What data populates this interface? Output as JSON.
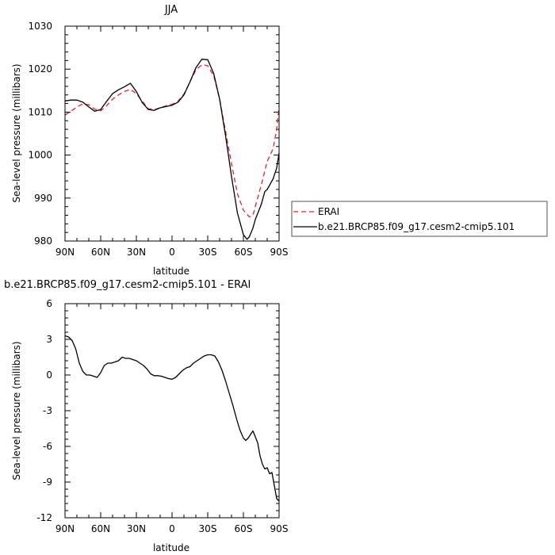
{
  "chart_data": [
    {
      "type": "line",
      "title": "JJA",
      "xlabel": "latitude",
      "ylabel": "Sea-level pressure (millibars)",
      "xlim": [
        90,
        -90
      ],
      "ylim": [
        980,
        1030
      ],
      "xticks": [
        90,
        60,
        30,
        0,
        -30,
        -60,
        -90
      ],
      "xtick_labels": [
        "90N",
        "60N",
        "30N",
        "0",
        "30S",
        "60S",
        "90S"
      ],
      "yticks": [
        980,
        990,
        1000,
        1010,
        1020,
        1030
      ],
      "ytick_labels": [
        "980",
        "990",
        "1000",
        "1010",
        "1020",
        "1030"
      ],
      "grid": false,
      "legend_position": "right",
      "series": [
        {
          "name": "ERAI",
          "color": "#e8212a",
          "dash": "dashed",
          "x": [
            90,
            85,
            80,
            75,
            70,
            65,
            60,
            55,
            50,
            45,
            40,
            35,
            30,
            25,
            20,
            15,
            10,
            5,
            0,
            -5,
            -10,
            -15,
            -20,
            -25,
            -30,
            -35,
            -40,
            -45,
            -50,
            -55,
            -60,
            -65,
            -68,
            -70,
            -75,
            -80,
            -85,
            -88,
            -90
          ],
          "y": [
            1009.3,
            1010.2,
            1011.2,
            1011.9,
            1011.7,
            1010.7,
            1010.3,
            1011.5,
            1013.0,
            1014.0,
            1014.8,
            1015.3,
            1014.3,
            1012.5,
            1010.8,
            1010.6,
            1011.0,
            1011.5,
            1011.8,
            1012.5,
            1014.2,
            1017.0,
            1019.8,
            1021.0,
            1020.8,
            1018.5,
            1013.0,
            1005.5,
            998.0,
            991.0,
            987.2,
            985.6,
            986.0,
            988.0,
            993.0,
            998.5,
            1001.5,
            1006.0,
            1011.5
          ]
        },
        {
          "name": "b.e21.BRCP85.f09_g17.cesm2-cmip5.101",
          "color": "#000000",
          "dash": "solid",
          "x": [
            90,
            85,
            80,
            75,
            70,
            65,
            60,
            55,
            50,
            45,
            40,
            35,
            30,
            25,
            20,
            15,
            10,
            5,
            0,
            -5,
            -10,
            -15,
            -20,
            -25,
            -30,
            -35,
            -40,
            -45,
            -50,
            -55,
            -60,
            -63,
            -65,
            -68,
            -70,
            -75,
            -78,
            -80,
            -85,
            -88,
            -90
          ],
          "y": [
            1012.6,
            1012.8,
            1012.8,
            1012.3,
            1011.2,
            1010.2,
            1010.6,
            1012.5,
            1014.3,
            1015.2,
            1015.9,
            1016.7,
            1014.8,
            1012.2,
            1010.6,
            1010.4,
            1011.0,
            1011.3,
            1011.6,
            1012.3,
            1014.0,
            1017.0,
            1020.3,
            1022.3,
            1022.2,
            1019.0,
            1013.0,
            1004.5,
            995.0,
            986.5,
            981.5,
            980.4,
            981.0,
            983.0,
            985.0,
            988.5,
            991.5,
            992.0,
            994.5,
            997.0,
            1000.5
          ]
        }
      ]
    },
    {
      "type": "line",
      "title": "b.e21.BRCP85.f09_g17.cesm2-cmip5.101 - ERAI",
      "xlabel": "latitude",
      "ylabel": "Sea-level pressure (millibars)",
      "xlim": [
        90,
        -90
      ],
      "ylim": [
        -12,
        6
      ],
      "xticks": [
        90,
        60,
        30,
        0,
        -30,
        -60,
        -90
      ],
      "xtick_labels": [
        "90N",
        "60N",
        "30N",
        "0",
        "30S",
        "60S",
        "90S"
      ],
      "yticks": [
        -12,
        -9,
        -6,
        -3,
        0,
        3,
        6
      ],
      "ytick_labels": [
        "-12",
        "-9",
        "-6",
        "-3",
        "0",
        "3",
        "6"
      ],
      "grid": false,
      "series": [
        {
          "color": "#000000",
          "dash": "solid",
          "x": [
            90,
            87,
            84,
            81,
            78,
            75,
            72,
            69,
            66,
            63,
            60,
            57,
            54,
            51,
            48,
            45,
            42,
            39,
            36,
            33,
            30,
            27,
            24,
            21,
            18,
            15,
            12,
            9,
            6,
            3,
            0,
            -3,
            -6,
            -9,
            -12,
            -15,
            -18,
            -21,
            -24,
            -27,
            -30,
            -33,
            -36,
            -39,
            -42,
            -45,
            -48,
            -51,
            -54,
            -57,
            -60,
            -62,
            -64,
            -66,
            -68,
            -70,
            -72,
            -74,
            -76,
            -78,
            -80,
            -82,
            -84,
            -86,
            -88,
            -90
          ],
          "y": [
            3.3,
            3.2,
            2.9,
            2.2,
            1.0,
            0.3,
            0.0,
            0.0,
            -0.1,
            -0.2,
            0.2,
            0.8,
            1.0,
            1.0,
            1.1,
            1.2,
            1.5,
            1.4,
            1.4,
            1.3,
            1.2,
            1.0,
            0.8,
            0.5,
            0.1,
            -0.05,
            -0.05,
            -0.1,
            -0.2,
            -0.3,
            -0.35,
            -0.2,
            0.1,
            0.4,
            0.6,
            0.7,
            1.0,
            1.2,
            1.4,
            1.6,
            1.7,
            1.7,
            1.6,
            1.1,
            0.4,
            -0.5,
            -1.5,
            -2.5,
            -3.6,
            -4.6,
            -5.3,
            -5.5,
            -5.3,
            -5.0,
            -4.7,
            -5.2,
            -5.7,
            -6.8,
            -7.5,
            -7.9,
            -7.8,
            -8.3,
            -8.2,
            -9.3,
            -10.4,
            -10.6
          ]
        }
      ]
    }
  ]
}
